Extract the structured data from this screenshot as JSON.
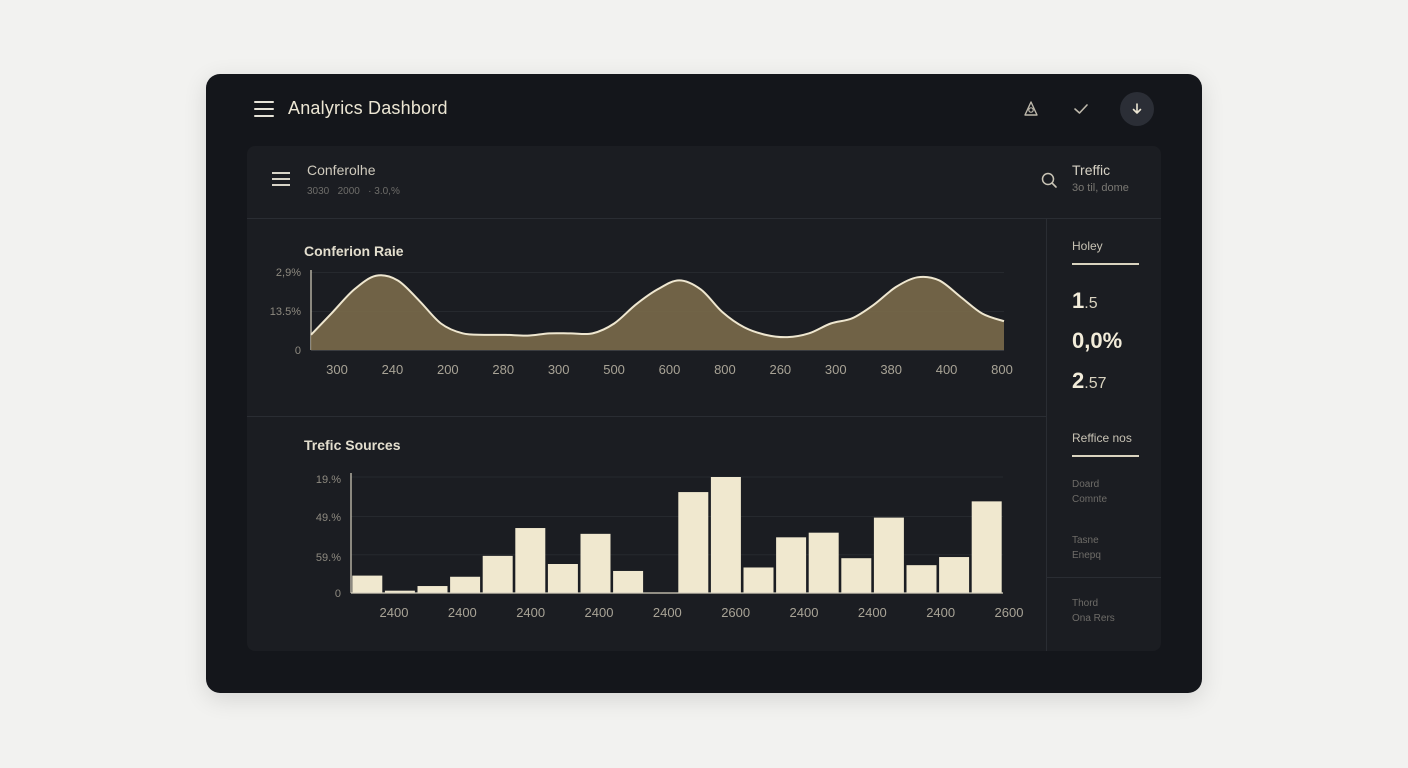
{
  "app": {
    "title": "Analyrics Dashbord"
  },
  "topbar": {
    "icons": [
      "alert-icon",
      "check-icon",
      "download-icon"
    ]
  },
  "panel_header": {
    "title": "Conferolhe",
    "subtitle": "3030   2000   · 3.0,%",
    "traffic_title": "Treffic",
    "traffic_sub": "3o til, dome"
  },
  "charts": {
    "conversion_title": "Conferion Raie",
    "traffic_title": "Trefic Sources"
  },
  "chart_data": [
    {
      "type": "area",
      "title": "Conferion Raie",
      "y_ticks": [
        "2,9%",
        "13.5%",
        "0"
      ],
      "x_ticks": [
        "300",
        "240",
        "200",
        "280",
        "300",
        "500",
        "600",
        "800",
        "260",
        "300",
        "380",
        "400",
        "800"
      ],
      "values": [
        0.2,
        0.5,
        0.8,
        0.98,
        0.92,
        0.65,
        0.35,
        0.22,
        0.2,
        0.2,
        0.19,
        0.22,
        0.22,
        0.22,
        0.35,
        0.6,
        0.8,
        0.92,
        0.8,
        0.5,
        0.3,
        0.2,
        0.17,
        0.22,
        0.35,
        0.42,
        0.6,
        0.83,
        0.96,
        0.92,
        0.7,
        0.48,
        0.38
      ],
      "ylim": [
        0,
        1.03
      ],
      "grid": true,
      "color": "#7a6a4a",
      "line_color": "#efe7d0"
    },
    {
      "type": "bar",
      "title": "Trefic Sources",
      "y_ticks": [
        "19.%",
        "49.%",
        "59.%",
        "0"
      ],
      "x_ticks": [
        "2400",
        "2400",
        "2400",
        "2400",
        "2400",
        "2600",
        "2400",
        "2400",
        "2400",
        "2600"
      ],
      "values": [
        0.15,
        0.02,
        0.06,
        0.14,
        0.32,
        0.56,
        0.25,
        0.51,
        0.19,
        0,
        0.87,
        1.0,
        0.22,
        0.48,
        0.52,
        0.3,
        0.65,
        0.24,
        0.31,
        0.79
      ],
      "ylim": [
        0,
        1.0
      ],
      "grid": true,
      "color": "#f0e8cf"
    }
  ],
  "side": {
    "section1_label": "Holey",
    "stats": [
      {
        "big": "1",
        "small": ".5"
      },
      {
        "big": "0,0%",
        "small": ""
      },
      {
        "big": "2",
        "small": ".57"
      }
    ],
    "section2_label": "Reffice nos",
    "items": [
      {
        "line1": "Doard",
        "line2": "Comnte"
      },
      {
        "line1": "Tasne",
        "line2": "Enepq"
      },
      {
        "line1": "Thord",
        "line2": "Ona Rers"
      }
    ]
  }
}
